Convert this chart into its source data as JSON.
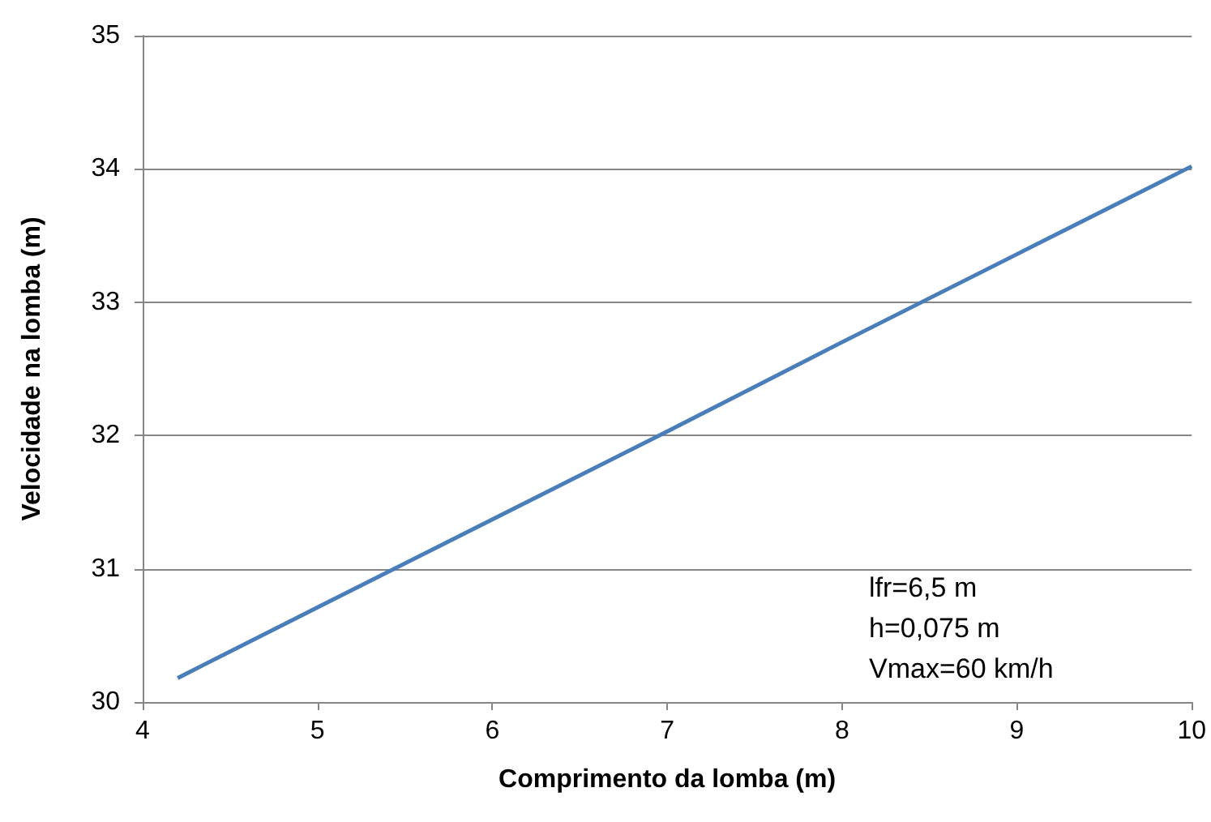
{
  "chart_data": {
    "type": "line",
    "xlabel": "Comprimento da lomba (m)",
    "ylabel": "Velocidade na lomba (m)",
    "x": [
      4.2,
      5,
      6,
      7,
      8,
      9,
      10
    ],
    "series": [
      {
        "color": "#4a7ebb",
        "values": [
          30.18,
          30.71,
          31.37,
          32.03,
          32.7,
          33.36,
          34.02
        ]
      }
    ],
    "xlim": [
      4,
      10
    ],
    "xticks": [
      4,
      5,
      6,
      7,
      8,
      9,
      10
    ],
    "ylim": [
      30,
      35
    ],
    "yticks": [
      30,
      31,
      32,
      33,
      34,
      35
    ],
    "grid": "y",
    "marker": "none",
    "line_style": "solid",
    "annotations": [
      "lfr=6,5 m",
      "h=0,075 m",
      "Vmax=60 km/h"
    ]
  }
}
